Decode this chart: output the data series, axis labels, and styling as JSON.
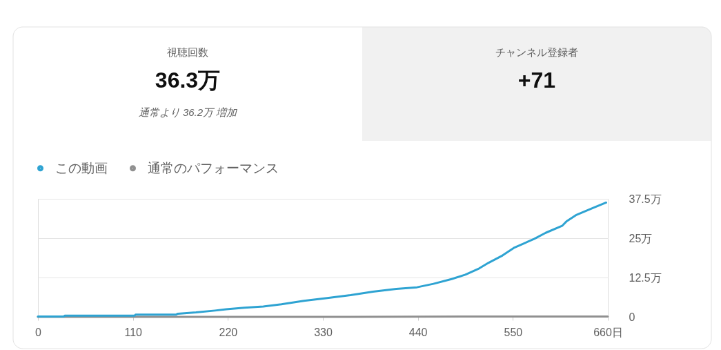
{
  "chart_data": [
    {
      "type": "other",
      "categories": [
        "視聴回数",
        "チャンネル登録者"
      ],
      "value_labels": [
        "36.3万",
        "+71"
      ],
      "annotations": [
        "通常より 36.2万 増加"
      ]
    },
    {
      "type": "line",
      "x": [
        0,
        30,
        31,
        112,
        113,
        160,
        162,
        183,
        205,
        218,
        239,
        261,
        282,
        308,
        335,
        362,
        388,
        415,
        439,
        458,
        479,
        495,
        511,
        522,
        538,
        551,
        575,
        588,
        607,
        612,
        623,
        642,
        658
      ],
      "series": [
        {
          "name": "この動画",
          "color": "#2ea3d2",
          "values": [
            0.1,
            0.1,
            0.4,
            0.4,
            0.7,
            0.7,
            1.0,
            1.4,
            2.0,
            2.4,
            2.9,
            3.3,
            4.0,
            5.1,
            6.0,
            6.9,
            8.0,
            8.9,
            9.4,
            10.5,
            12.0,
            13.4,
            15.4,
            17.2,
            19.5,
            21.9,
            24.8,
            26.7,
            28.9,
            30.3,
            32.3,
            34.5,
            36.3
          ]
        },
        {
          "name": "通常のパフォーマンス",
          "color": "#909090",
          "x": [
            0,
            165,
            330,
            495,
            660
          ],
          "values": [
            0,
            0,
            0,
            0.1,
            0.1
          ]
        }
      ],
      "xlim": [
        0,
        660
      ],
      "xticks": [
        0,
        110,
        220,
        330,
        440,
        550,
        {
          "value": 660,
          "label": "660日"
        }
      ],
      "ylim": [
        0,
        37.5
      ],
      "yticks": [
        0,
        {
          "value": 12.5,
          "label": "12.5万"
        },
        {
          "value": 25,
          "label": "25万"
        },
        {
          "value": 37.5,
          "label": "37.5万"
        }
      ],
      "grid": "y",
      "legend": "top left"
    }
  ]
}
